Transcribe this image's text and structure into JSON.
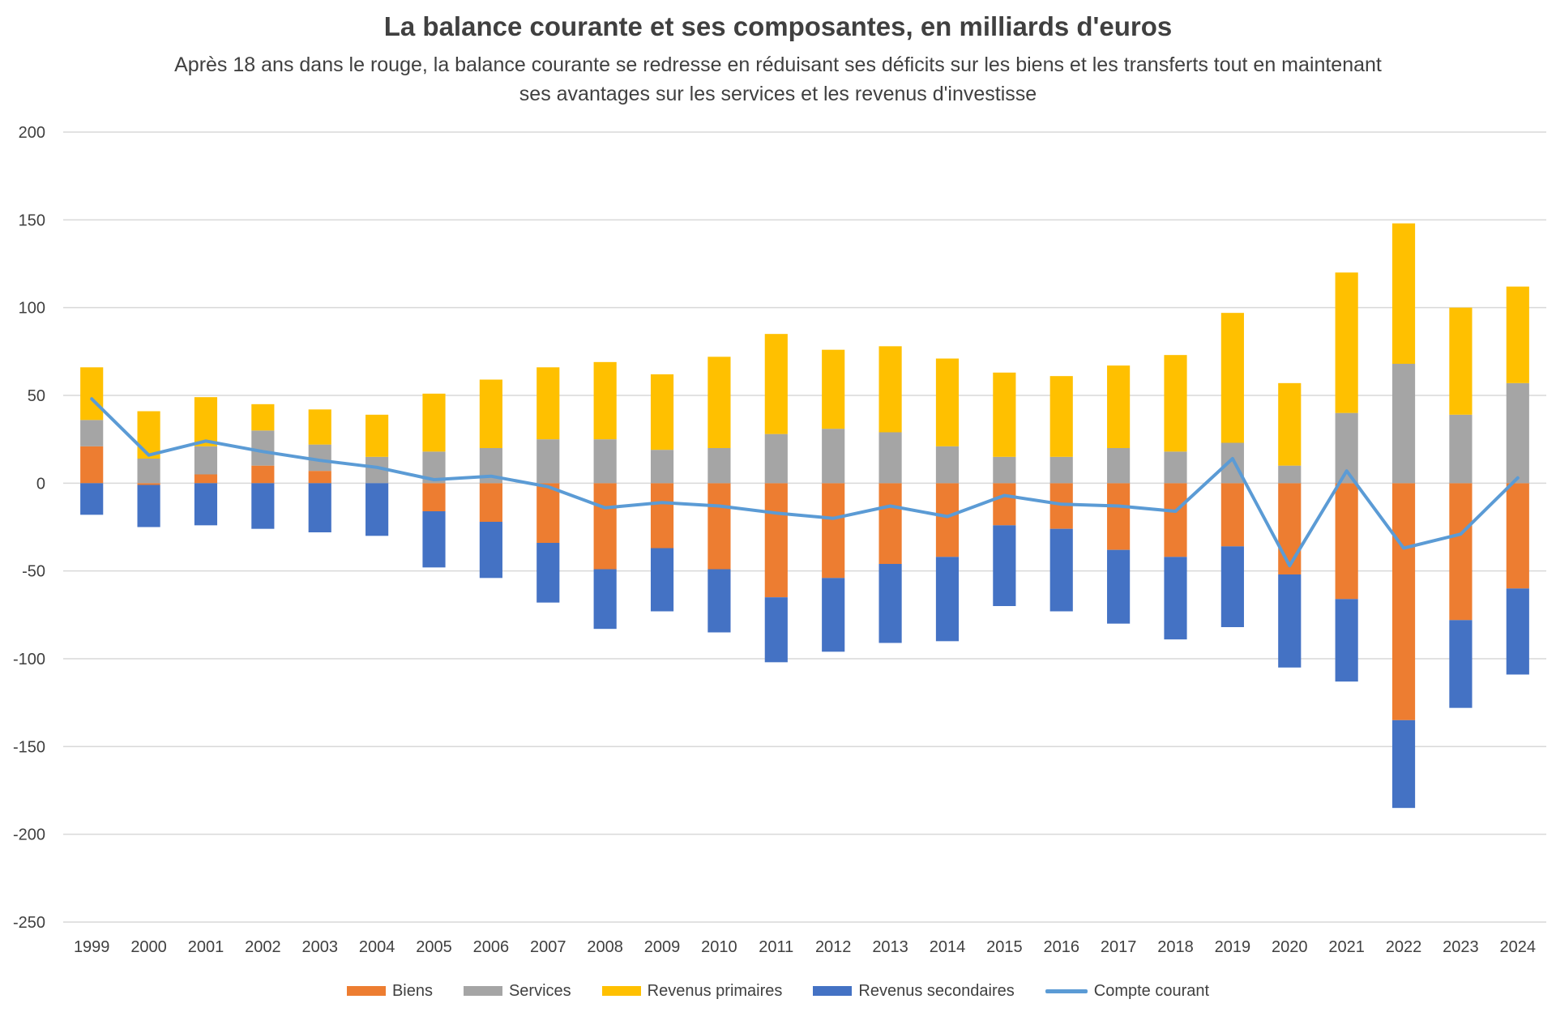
{
  "chart_data": {
    "type": "bar",
    "stacked": true,
    "title": "La balance courante et ses composantes, en milliards d'euros",
    "subtitle": "Après 18 ans dans le rouge, la balance courante se redresse en réduisant ses déficits sur les biens et les transferts tout en maintenant ses avantages sur les services et les revenus d'investisse",
    "xlabel": "",
    "ylabel": "",
    "ylim": [
      -250,
      200
    ],
    "yticks": [
      "200",
      "150",
      "100",
      "50",
      "0",
      "-50",
      "-100",
      "-150",
      "-200",
      "-250"
    ],
    "grid": true,
    "legend_position": "bottom",
    "categories": [
      "1999",
      "2000",
      "2001",
      "2002",
      "2003",
      "2004",
      "2005",
      "2006",
      "2007",
      "2008",
      "2009",
      "2010",
      "2011",
      "2012",
      "2013",
      "2014",
      "2015",
      "2016",
      "2017",
      "2018",
      "2019",
      "2020",
      "2021",
      "2022",
      "2023",
      "2024"
    ],
    "series": [
      {
        "name": "Biens",
        "type": "bar",
        "color": "#ED7D31",
        "values": [
          21,
          -1,
          5,
          10,
          7,
          0,
          -16,
          -22,
          -34,
          -49,
          -37,
          -49,
          -65,
          -54,
          -46,
          -42,
          -24,
          -26,
          -38,
          -42,
          -36,
          -52,
          -66,
          -135,
          -78,
          -60
        ]
      },
      {
        "name": "Services",
        "type": "bar",
        "color": "#A5A5A5",
        "values": [
          15,
          14,
          16,
          20,
          15,
          15,
          18,
          20,
          25,
          25,
          19,
          20,
          28,
          31,
          29,
          21,
          15,
          15,
          20,
          18,
          23,
          10,
          40,
          68,
          39,
          57
        ]
      },
      {
        "name": "Revenus primaires",
        "type": "bar",
        "color": "#FFC000",
        "values": [
          30,
          27,
          28,
          15,
          20,
          24,
          33,
          39,
          41,
          44,
          43,
          52,
          57,
          45,
          49,
          50,
          48,
          46,
          47,
          55,
          74,
          47,
          80,
          80,
          61,
          55
        ]
      },
      {
        "name": "Revenus secondaires",
        "type": "bar",
        "color": "#4472C4",
        "values": [
          -18,
          -24,
          -24,
          -26,
          -28,
          -30,
          -32,
          -32,
          -34,
          -34,
          -36,
          -36,
          -37,
          -42,
          -45,
          -48,
          -46,
          -47,
          -42,
          -47,
          -46,
          -53,
          -47,
          -50,
          -50,
          -49
        ]
      },
      {
        "name": "Compte courant",
        "type": "line",
        "color": "#5B9BD5",
        "values": [
          48,
          16,
          24,
          18,
          13,
          9,
          2,
          4,
          -2,
          -14,
          -11,
          -13,
          -17,
          -20,
          -13,
          -19,
          -7,
          -12,
          -13,
          -16,
          14,
          -47,
          7,
          -37,
          -29,
          3
        ]
      }
    ]
  }
}
